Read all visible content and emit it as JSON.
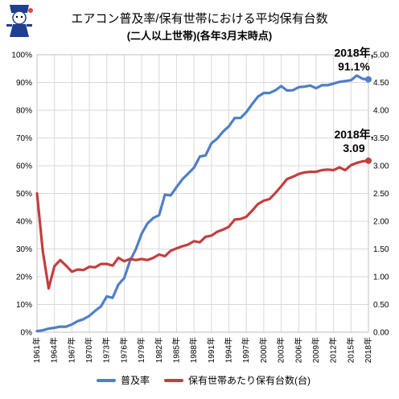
{
  "title": "エアコン普及率/保有世帯における平均保有台数",
  "subtitle": "(二人以上世帯)(各年3月末時点)",
  "logo": {
    "kind": "mascot-illustration",
    "text": ""
  },
  "colors": {
    "series1": "#4f7fc7",
    "series2": "#c43e3e",
    "grid": "#d9d9d9",
    "axis": "#bfbfbf"
  },
  "chart_data": {
    "type": "line",
    "x": [
      1961,
      1962,
      1963,
      1964,
      1965,
      1966,
      1967,
      1968,
      1969,
      1970,
      1971,
      1972,
      1973,
      1974,
      1975,
      1976,
      1977,
      1978,
      1979,
      1980,
      1981,
      1982,
      1983,
      1984,
      1985,
      1986,
      1987,
      1988,
      1989,
      1990,
      1991,
      1992,
      1993,
      1994,
      1995,
      1996,
      1997,
      1998,
      1999,
      2000,
      2001,
      2002,
      2003,
      2004,
      2005,
      2006,
      2007,
      2008,
      2009,
      2010,
      2011,
      2012,
      2013,
      2014,
      2015,
      2016,
      2017,
      2018
    ],
    "x_tick_labels": [
      "1961年",
      "1964年",
      "1967年",
      "1970年",
      "1973年",
      "1976年",
      "1979年",
      "1982年",
      "1985年",
      "1988年",
      "1991年",
      "1994年",
      "1997年",
      "2000年",
      "2003年",
      "2006年",
      "2009年",
      "2012年",
      "2015年",
      "2018年"
    ],
    "x_tick_years": [
      1961,
      1964,
      1967,
      1970,
      1973,
      1976,
      1979,
      1982,
      1985,
      1988,
      1991,
      1994,
      1997,
      2000,
      2003,
      2006,
      2009,
      2012,
      2015,
      2018
    ],
    "y_left": {
      "min": 0,
      "max": 100,
      "ticks": [
        0,
        10,
        20,
        30,
        40,
        50,
        60,
        70,
        80,
        90,
        100
      ],
      "tick_labels": [
        "0%",
        "10%",
        "20%",
        "30%",
        "40%",
        "50%",
        "60%",
        "70%",
        "80%",
        "90%",
        "100%"
      ]
    },
    "y_right": {
      "min": 0,
      "max": 5,
      "ticks": [
        0,
        0.5,
        1,
        1.5,
        2,
        2.5,
        3,
        3.5,
        4,
        4.5,
        5
      ],
      "tick_labels": [
        "0.00",
        "0.50",
        "1.00",
        "1.50",
        "2.00",
        "2.50",
        "3.00",
        "3.50",
        "4.00",
        "4.50",
        "5.00"
      ]
    },
    "grid": true,
    "legend_placement": "bottom",
    "series": [
      {
        "name": "普及率",
        "axis": "left",
        "values": [
          0.4,
          0.7,
          1.3,
          1.6,
          2.0,
          2.0,
          2.8,
          4.0,
          4.7,
          5.9,
          7.7,
          9.3,
          12.9,
          12.4,
          17.2,
          19.5,
          25.7,
          29.9,
          35.5,
          39.2,
          41.2,
          42.2,
          49.6,
          49.3,
          52.3,
          55.1,
          57.2,
          59.3,
          63.3,
          63.7,
          68.1,
          69.8,
          72.3,
          74.2,
          77.2,
          77.2,
          79.3,
          82.2,
          84.9,
          86.2,
          86.2,
          87.2,
          88.7,
          87.1,
          87.2,
          88.3,
          88.5,
          88.9,
          87.9,
          89.0,
          89.0,
          89.6,
          90.2,
          90.5,
          90.8,
          92.5,
          91.3,
          91.1
        ]
      },
      {
        "name": "保有世帯あたり保有台数(台)",
        "axis": "right",
        "values": [
          2.5,
          1.46,
          0.79,
          1.19,
          1.3,
          1.2,
          1.09,
          1.13,
          1.12,
          1.18,
          1.17,
          1.23,
          1.23,
          1.2,
          1.34,
          1.28,
          1.32,
          1.3,
          1.32,
          1.3,
          1.34,
          1.4,
          1.37,
          1.47,
          1.51,
          1.55,
          1.58,
          1.64,
          1.62,
          1.72,
          1.74,
          1.81,
          1.85,
          1.9,
          2.03,
          2.04,
          2.08,
          2.19,
          2.31,
          2.37,
          2.4,
          2.51,
          2.63,
          2.76,
          2.8,
          2.85,
          2.88,
          2.89,
          2.89,
          2.92,
          2.93,
          2.92,
          2.97,
          2.92,
          3.01,
          3.05,
          3.08,
          3.09
        ]
      }
    ],
    "annotations": [
      {
        "series": 0,
        "line1": "2018年,",
        "line2": "91.1%"
      },
      {
        "series": 1,
        "line1": "2018年,",
        "line2": "3.09"
      }
    ]
  }
}
